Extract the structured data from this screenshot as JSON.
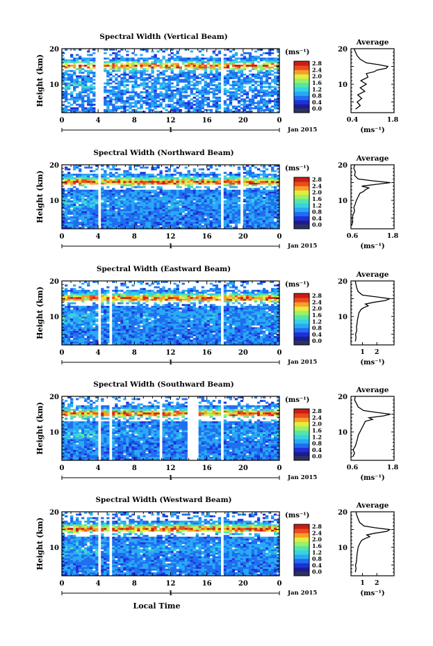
{
  "figure": {
    "x_axis_label": "Local Time",
    "date_label": "Jan 2015",
    "day_label": "1",
    "height_label": "Height (km)",
    "unit_label": "(ms⁻¹)",
    "average_title": "Average",
    "colormap": [
      "#1c1c8c",
      "#2030d8",
      "#1f6ef0",
      "#29a9f5",
      "#38d2e0",
      "#54e6a8",
      "#9af06a",
      "#e6ec3c",
      "#f6a02a",
      "#ee4a1e",
      "#c81e14"
    ],
    "low_color": "#303060",
    "background": "#ffffff"
  },
  "chart_data": [
    {
      "type": "heatmap",
      "title": "Spectral Width (Vertical Beam)",
      "xlabel": "",
      "ylabel": "Height (km)",
      "xlim": [
        0,
        24
      ],
      "ylim": [
        2,
        20
      ],
      "x_ticks": [
        "0",
        "4",
        "8",
        "12",
        "16",
        "20",
        "0"
      ],
      "y_ticks": [
        "20",
        "10"
      ],
      "colorbar": {
        "label": "(ms⁻¹)",
        "ticks": [
          "2.8",
          "2.4",
          "2.0",
          "1.6",
          "1.2",
          "0.8",
          "0.4",
          "0.0"
        ]
      },
      "gaps": [
        [
          3.8,
          4.3
        ],
        [
          4.4,
          4.6
        ],
        [
          17.4,
          17.7
        ]
      ],
      "profile": {
        "title": "Average",
        "xlabel": "(ms⁻¹)",
        "xlim": [
          0.4,
          1.8
        ],
        "x_ticks": [
          "0.4",
          "1.8"
        ],
        "y_ticks": [
          "20",
          "10"
        ],
        "height": [
          3,
          4,
          5,
          6,
          7,
          8,
          9,
          10,
          11,
          12,
          13,
          13.5,
          14,
          14.5,
          15,
          15.5,
          16,
          17,
          18,
          19,
          20
        ],
        "values": [
          0.55,
          0.7,
          0.6,
          0.75,
          0.62,
          0.85,
          0.7,
          0.9,
          0.72,
          0.95,
          0.9,
          1.15,
          1.25,
          1.55,
          1.6,
          1.3,
          0.9,
          0.7,
          0.6,
          0.55,
          0.5
        ]
      }
    },
    {
      "type": "heatmap",
      "title": "Spectral Width (Northward Beam)",
      "xlabel": "",
      "ylabel": "Height (km)",
      "xlim": [
        0,
        24
      ],
      "ylim": [
        2,
        20
      ],
      "x_ticks": [
        "0",
        "4",
        "8",
        "12",
        "16",
        "20",
        "0"
      ],
      "y_ticks": [
        "20",
        "10"
      ],
      "colorbar": {
        "label": "(ms⁻¹)",
        "ticks": [
          "2.8",
          "2.4",
          "2.0",
          "1.6",
          "1.2",
          "0.8",
          "0.4",
          "0.0"
        ]
      },
      "gaps": [
        [
          3.9,
          4.3
        ],
        [
          17.4,
          17.7
        ],
        [
          19.8,
          20.0
        ]
      ],
      "profile": {
        "title": "Average",
        "xlabel": "(ms⁻¹)",
        "xlim": [
          0.6,
          1.8
        ],
        "x_ticks": [
          "0.6",
          "1.8"
        ],
        "y_ticks": [
          "20",
          "10"
        ],
        "height": [
          3,
          4,
          5,
          6,
          7,
          8,
          9,
          10,
          11,
          12,
          12.5,
          13,
          13.5,
          14,
          14.5,
          15,
          15.5,
          16,
          17,
          18,
          19,
          20
        ],
        "values": [
          0.62,
          0.65,
          0.63,
          0.66,
          0.7,
          0.68,
          0.72,
          0.75,
          0.8,
          0.85,
          0.95,
          1.0,
          1.1,
          0.9,
          1.3,
          1.7,
          1.2,
          0.8,
          0.7,
          0.72,
          0.68,
          0.7
        ]
      }
    },
    {
      "type": "heatmap",
      "title": "Spectral Width (Eastward Beam)",
      "xlabel": "",
      "ylabel": "Height (km)",
      "xlim": [
        0,
        24
      ],
      "ylim": [
        2,
        20
      ],
      "x_ticks": [
        "0",
        "4",
        "8",
        "12",
        "16",
        "20",
        "0"
      ],
      "y_ticks": [
        "20",
        "10"
      ],
      "colorbar": {
        "label": "(ms⁻¹)",
        "ticks": [
          "2.8",
          "2.4",
          "2.0",
          "1.6",
          "1.2",
          "0.8",
          "0.4",
          "0.0"
        ]
      },
      "gaps": [
        [
          3.9,
          4.3
        ],
        [
          5.3,
          5.6
        ],
        [
          17.4,
          17.7
        ]
      ],
      "profile": {
        "title": "Average",
        "xlabel": "(ms⁻¹)",
        "xlim": [
          0.2,
          3.2
        ],
        "x_ticks": [
          "1",
          "2"
        ],
        "y_ticks": [
          "20",
          "10"
        ],
        "height": [
          3,
          4,
          5,
          6,
          7,
          8,
          9,
          10,
          11,
          12,
          12.5,
          13,
          13.5,
          14,
          14.5,
          15,
          15.5,
          16,
          17,
          18,
          19,
          20
        ],
        "values": [
          0.5,
          0.55,
          0.52,
          0.6,
          0.58,
          0.62,
          0.65,
          0.7,
          0.75,
          0.9,
          1.1,
          1.4,
          1.2,
          1.8,
          2.6,
          2.9,
          2.0,
          1.0,
          0.7,
          0.6,
          0.55,
          0.5
        ]
      }
    },
    {
      "type": "heatmap",
      "title": "Spectral Width (Southward Beam)",
      "xlabel": "",
      "ylabel": "Height (km)",
      "xlim": [
        0,
        24
      ],
      "ylim": [
        2,
        20
      ],
      "x_ticks": [
        "0",
        "4",
        "8",
        "12",
        "16",
        "20",
        "0"
      ],
      "y_ticks": [
        "20",
        "10"
      ],
      "colorbar": {
        "label": "(ms⁻¹)",
        "ticks": [
          "2.8",
          "2.4",
          "2.0",
          "1.6",
          "1.2",
          "0.8",
          "0.4",
          "0.0"
        ]
      },
      "gaps": [
        [
          3.9,
          4.3
        ],
        [
          5.3,
          5.6
        ],
        [
          17.4,
          17.7
        ],
        [
          10.8,
          11.0
        ],
        [
          14.0,
          15.0
        ]
      ],
      "profile": {
        "title": "Average",
        "xlabel": "(ms⁻¹)",
        "xlim": [
          0.6,
          1.8
        ],
        "x_ticks": [
          "0.6",
          "1.8"
        ],
        "y_ticks": [
          "20",
          "10"
        ],
        "height": [
          3,
          4,
          5,
          6,
          7,
          8,
          9,
          10,
          11,
          12,
          13,
          13.5,
          14,
          14.5,
          15,
          15.5,
          16,
          17,
          18,
          19,
          20
        ],
        "values": [
          0.65,
          0.7,
          0.66,
          0.72,
          0.75,
          0.78,
          0.8,
          0.85,
          0.9,
          0.95,
          1.0,
          1.2,
          1.1,
          1.5,
          1.7,
          1.3,
          0.95,
          0.8,
          0.75,
          0.7,
          0.72
        ]
      }
    },
    {
      "type": "heatmap",
      "title": "Spectral Width (Westward Beam)",
      "xlabel": "Local Time",
      "ylabel": "Height (km)",
      "xlim": [
        0,
        24
      ],
      "ylim": [
        2,
        20
      ],
      "x_ticks": [
        "0",
        "4",
        "8",
        "12",
        "16",
        "20",
        "0"
      ],
      "y_ticks": [
        "20",
        "10"
      ],
      "colorbar": {
        "label": "(ms⁻¹)",
        "ticks": [
          "2.8",
          "2.4",
          "2.0",
          "1.6",
          "1.2",
          "0.8",
          "0.4",
          "0.0"
        ]
      },
      "gaps": [
        [
          3.9,
          4.3
        ],
        [
          5.3,
          5.6
        ],
        [
          17.4,
          17.7
        ]
      ],
      "profile": {
        "title": "Average",
        "xlabel": "(ms⁻¹)",
        "xlim": [
          0.2,
          3.2
        ],
        "x_ticks": [
          "1",
          "2"
        ],
        "y_ticks": [
          "20",
          "10"
        ],
        "height": [
          3,
          4,
          5,
          6,
          7,
          8,
          9,
          10,
          11,
          12,
          12.5,
          13,
          13.5,
          14,
          14.5,
          15,
          15.5,
          16,
          17,
          18,
          19,
          20
        ],
        "values": [
          0.5,
          0.55,
          0.52,
          0.58,
          0.6,
          0.62,
          0.66,
          0.7,
          0.8,
          0.95,
          1.2,
          1.5,
          1.3,
          1.9,
          2.7,
          2.9,
          1.9,
          1.1,
          0.8,
          0.7,
          0.6,
          0.55
        ]
      }
    }
  ]
}
